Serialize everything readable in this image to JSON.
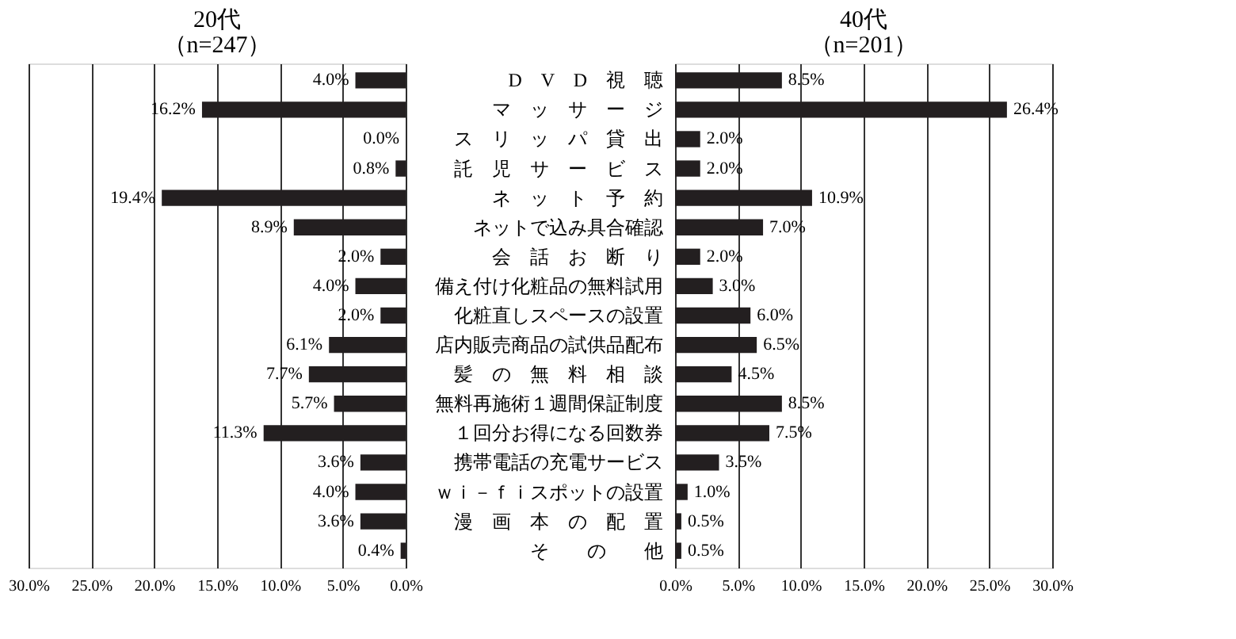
{
  "chart_data": [
    {
      "type": "bar",
      "orientation": "horizontal",
      "title": "20代",
      "subtitle": "（n=247）",
      "categories": [
        null,
        null,
        null,
        null,
        null,
        null,
        null,
        null,
        null,
        null,
        null,
        null,
        null,
        null,
        null,
        null,
        null
      ],
      "series": [
        {
          "color": "#231f20",
          "values": [
            4.0,
            16.2,
            0.0,
            0.8,
            19.4,
            8.9,
            2.0,
            4.0,
            2.0,
            6.1,
            7.7,
            5.7,
            11.3,
            3.6,
            4.0,
            3.6,
            0.4
          ],
          "value_labels": [
            "4.0%",
            "16.2%",
            "0.0%",
            "0.8%",
            "19.4%",
            "8.9%",
            "2.0%",
            "4.0%",
            "2.0%",
            "6.1%",
            "7.7%",
            "5.7%",
            "11.3%",
            "3.6%",
            "4.0%",
            "3.6%",
            "0.4%"
          ]
        }
      ],
      "xlim": [
        30,
        0
      ],
      "xticks": [
        {
          "value": 30,
          "label": "30.0%"
        },
        {
          "value": 25,
          "label": "25.0%"
        },
        {
          "value": 20,
          "label": "20.0%"
        },
        {
          "value": 15,
          "label": "15.0%"
        },
        {
          "value": 10,
          "label": "10.0%"
        },
        {
          "value": 5,
          "label": "5.0%"
        },
        {
          "value": 0,
          "label": "0.0%"
        }
      ],
      "grid": "x",
      "tick_labels": "x"
    },
    {
      "type": "bar",
      "orientation": "horizontal",
      "title": "40代",
      "subtitle": "（n=201）",
      "categories": [
        "D　V　D　視　聴",
        "マ　ッ　サ　ー　ジ",
        "ス　リ　ッ　パ　貸　出",
        "託　児　サ　ー　ビ　ス",
        "ネ　ッ　ト　予　約",
        "ネットで込み具合確認",
        "会　話　お　断　り",
        "備え付け化粧品の無料試用",
        "化粧直しスペースの設置",
        "店内販売商品の試供品配布",
        "髪　の　無　料　相　談",
        "無料再施術１週間保証制度",
        "１回分お得になる回数券",
        "携帯電話の充電サービス",
        "ｗｉ－ｆｉスポットの設置",
        "漫　画　本　の　配　置",
        "そ　　の　　他"
      ],
      "series": [
        {
          "color": "#231f20",
          "values": [
            8.5,
            26.4,
            2.0,
            2.0,
            10.9,
            7.0,
            2.0,
            3.0,
            6.0,
            6.5,
            4.5,
            8.5,
            7.5,
            3.5,
            1.0,
            0.5,
            0.5
          ],
          "value_labels": [
            "8.5%",
            "26.4%",
            "2.0%",
            "2.0%",
            "10.9%",
            "7.0%",
            "2.0%",
            "3.0%",
            "6.0%",
            "6.5%",
            "4.5%",
            "8.5%",
            "7.5%",
            "3.5%",
            "1.0%",
            "0.5%",
            "0.5%"
          ]
        }
      ],
      "xlim": [
        0,
        30
      ],
      "xticks": [
        {
          "value": 0,
          "label": "0.0%"
        },
        {
          "value": 5,
          "label": "5.0%"
        },
        {
          "value": 10,
          "label": "10.0%"
        },
        {
          "value": 15,
          "label": "15.0%"
        },
        {
          "value": 20,
          "label": "20.0%"
        },
        {
          "value": 25,
          "label": "25.0%"
        },
        {
          "value": 30,
          "label": "30.0%"
        }
      ],
      "grid": "x"
    }
  ]
}
